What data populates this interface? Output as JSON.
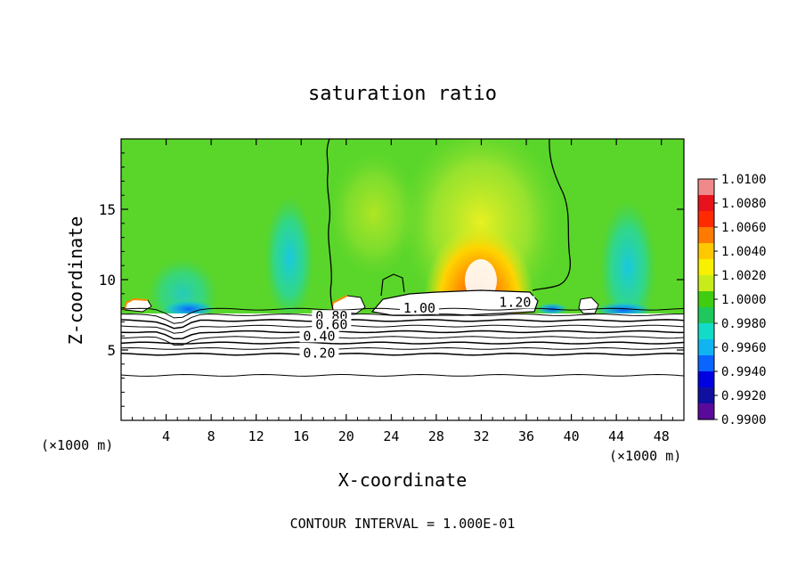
{
  "chart_data": {
    "type": "heatmap",
    "title": "saturation ratio",
    "xlabel": "X-coordinate",
    "ylabel": "Z-coordinate",
    "x_unit_left": "(×1000 m)",
    "x_unit_right": "(×1000 m)",
    "xlim": [
      0,
      50
    ],
    "ylim": [
      0,
      20
    ],
    "x_ticks": [
      4,
      8,
      12,
      16,
      20,
      24,
      28,
      32,
      36,
      40,
      44,
      48
    ],
    "y_ticks": [
      5,
      10,
      15
    ],
    "footer": "CONTOUR INTERVAL = 1.000E-01",
    "colorbar": {
      "labels": [
        "1.0100",
        "1.0080",
        "1.0060",
        "1.0040",
        "1.0020",
        "1.0000",
        "0.9980",
        "0.9960",
        "0.9940",
        "0.9920",
        "0.9900"
      ],
      "colors": [
        "#f08a8a",
        "#e8121c",
        "#ff2a00",
        "#ff7a00",
        "#ffc800",
        "#f7f000",
        "#c8ec1a",
        "#40cc10",
        "#1ec85c",
        "#12dcc8",
        "#10b4f0",
        "#0a64ff",
        "#0000e0",
        "#1010a0",
        "#5a0a9a"
      ]
    },
    "contour_labels": [
      {
        "text": "0.80",
        "x": 18.7,
        "z": 7.2
      },
      {
        "text": "0.60",
        "x": 18.7,
        "z": 6.6
      },
      {
        "text": "0.40",
        "x": 17.6,
        "z": 5.8
      },
      {
        "text": "0.20",
        "x": 17.6,
        "z": 4.6
      },
      {
        "text": "1.00",
        "x": 26.5,
        "z": 7.8
      },
      {
        "text": "1.20",
        "x": 35.0,
        "z": 8.2
      }
    ],
    "contour_levels": [
      1.0,
      0.9,
      0.8,
      0.7,
      0.6,
      0.5,
      0.4,
      0.3,
      0.2,
      0.1
    ]
  }
}
